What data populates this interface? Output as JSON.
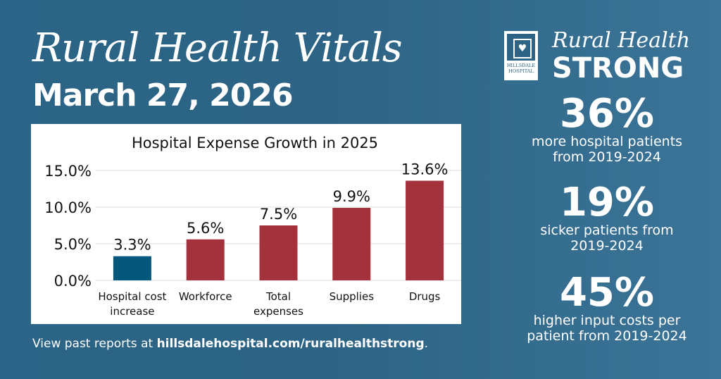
{
  "header": {
    "title": "Rural Health Vitals",
    "date": "March 27, 2026"
  },
  "brand": {
    "logo_text": "HILLSDALE HOSPITAL",
    "tagline_line1": "Rural Health",
    "tagline_line2": "STRONG"
  },
  "stats": [
    {
      "value": "36%",
      "line1": "more hospital patients",
      "line2": "from 2019-2024"
    },
    {
      "value": "19%",
      "line1": "sicker patients from",
      "line2": "2019-2024"
    },
    {
      "value": "45%",
      "line1": "higher input costs per",
      "line2": "patient from 2019-2024"
    }
  ],
  "footer": {
    "prefix": "View past reports at ",
    "link": "hillsdalehospital.com/ruralhealthstrong",
    "suffix": "."
  },
  "colors": {
    "highlight": "#06577c",
    "bar": "#a3323c"
  },
  "chart_data": {
    "type": "bar",
    "title": "Hospital Expense Growth in 2025",
    "categories": [
      [
        "Hospital cost",
        "increase"
      ],
      [
        "Workforce"
      ],
      [
        "Total",
        "expenses"
      ],
      [
        "Supplies"
      ],
      [
        "Drugs"
      ]
    ],
    "values": [
      3.3,
      5.6,
      7.5,
      9.9,
      13.6
    ],
    "data_labels": [
      "3.3%",
      "5.6%",
      "7.5%",
      "9.9%",
      "13.6%"
    ],
    "yticks": [
      "0.0%",
      "5.0%",
      "10.0%",
      "15.0%"
    ],
    "ylim": [
      0,
      15
    ],
    "grid": true,
    "highlight_index": 0
  }
}
